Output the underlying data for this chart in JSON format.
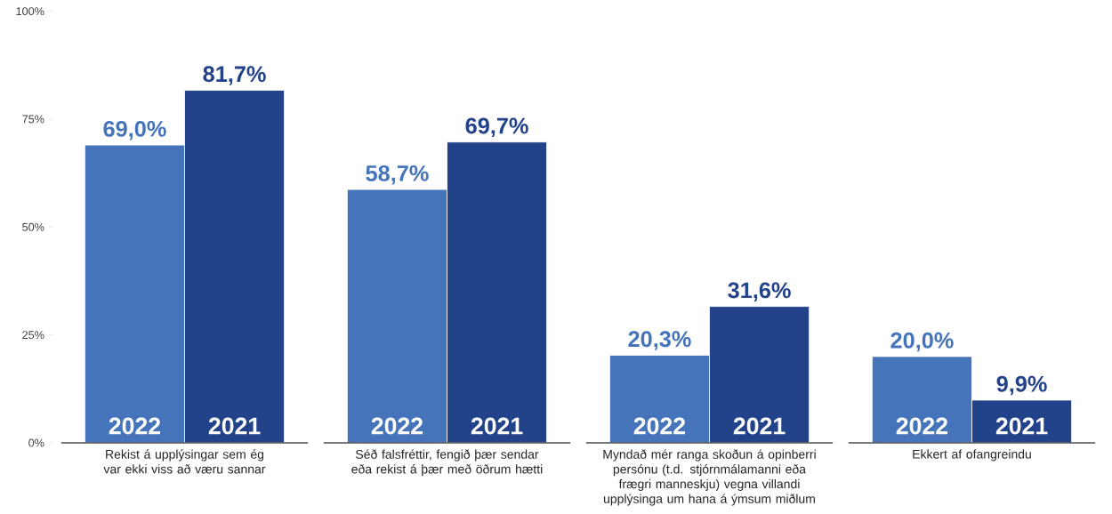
{
  "chart_data": {
    "type": "bar",
    "categories": [
      "Rekist á upplýsingar sem ég var ekki viss að væru sannar",
      "Séð falsfréttir, fengið þær sendar eða rekist á þær með öðrum hætti",
      "Myndað mér ranga skoðun á opinberri persónu (t.d. stjórnmálamanni eða frægri manneskju) vegna villandi upplýsinga um hana á ýmsum miðlum",
      "Ekkert af ofangreindu"
    ],
    "series": [
      {
        "name": "2022",
        "color": "#4674bb",
        "values": [
          69.0,
          58.7,
          20.3,
          20.0
        ],
        "value_labels": [
          "69,0%",
          "58,7%",
          "20,3%",
          "20,0%"
        ]
      },
      {
        "name": "2021",
        "color": "#22428a",
        "values": [
          81.7,
          69.7,
          31.6,
          9.9
        ],
        "value_labels": [
          "81,7%",
          "69,7%",
          "31,6%",
          "9,9%"
        ]
      }
    ],
    "ylim": [
      0,
      100
    ],
    "yticks": [
      {
        "value": 0,
        "label": "0%"
      },
      {
        "value": 25,
        "label": "25%"
      },
      {
        "value": 50,
        "label": "50%"
      },
      {
        "value": 75,
        "label": "75%"
      },
      {
        "value": 100,
        "label": "100%"
      }
    ],
    "grid": false,
    "legend": false
  }
}
